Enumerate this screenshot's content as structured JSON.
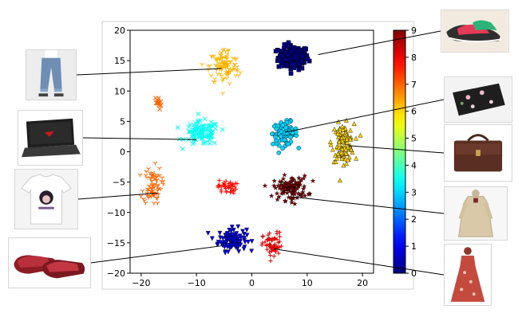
{
  "chart_data": {
    "type": "scatter",
    "title": "",
    "xlabel": "",
    "ylabel": "",
    "xlim": [
      -22,
      22
    ],
    "ylim": [
      -20,
      20
    ],
    "xticks": [
      -20,
      -10,
      0,
      10,
      20
    ],
    "yticks": [
      -20,
      -15,
      -10,
      -5,
      0,
      5,
      10,
      15,
      20
    ],
    "colorbar": {
      "min": 0,
      "max": 9,
      "ticks": [
        0,
        1,
        2,
        3,
        4,
        5,
        6,
        7,
        8,
        9
      ],
      "colormap": "jet"
    },
    "grid": false,
    "clusters": [
      {
        "label": 0,
        "marker": "square",
        "center": [
          7.5,
          15.5
        ],
        "spread": [
          2.5,
          1.8
        ],
        "count": 150,
        "image": "sneakers"
      },
      {
        "label": 1,
        "marker": "triangle-down",
        "center": [
          -3.5,
          -14.5
        ],
        "spread": [
          2.3,
          1.7
        ],
        "count": 110,
        "image": "slippers"
      },
      {
        "label": 3,
        "marker": "circle",
        "center": [
          6.0,
          3.0
        ],
        "spread": [
          2.0,
          1.7
        ],
        "count": 100,
        "image": "clutch-bag"
      },
      {
        "label": 3.5,
        "marker": "x",
        "center": [
          -9.0,
          3.0
        ],
        "spread": [
          2.8,
          1.8
        ],
        "count": 110,
        "image": "laptop"
      },
      {
        "label": 6,
        "marker": "triangle-up",
        "center": [
          16.5,
          1.5
        ],
        "spread": [
          1.8,
          2.8
        ],
        "count": 110,
        "image": "handbag"
      },
      {
        "label": 6.3,
        "marker": "tri-down",
        "center": [
          -5.0,
          14.0
        ],
        "spread": [
          2.5,
          2.8
        ],
        "count": 110,
        "image": "jeans"
      },
      {
        "label": 7,
        "marker": "tri-down",
        "center": [
          -18.0,
          -5.5
        ],
        "spread": [
          1.5,
          2.8
        ],
        "count": 80,
        "image": "t-shirt"
      },
      {
        "label": 7,
        "marker": "x",
        "center": [
          -17.0,
          8.0
        ],
        "spread": [
          0.6,
          1.0
        ],
        "count": 14,
        "image": ""
      },
      {
        "label": 7.8,
        "marker": "plus",
        "center": [
          -4.5,
          -5.8
        ],
        "spread": [
          1.5,
          1.0
        ],
        "count": 40,
        "image": ""
      },
      {
        "label": 8.2,
        "marker": "plus",
        "center": [
          3.8,
          -15.5
        ],
        "spread": [
          1.6,
          2.0
        ],
        "count": 60,
        "image": "dress"
      },
      {
        "label": 9,
        "marker": "star",
        "center": [
          7.0,
          -6.0
        ],
        "spread": [
          2.8,
          1.8
        ],
        "count": 110,
        "image": "coat"
      }
    ],
    "annotations": [
      {
        "image": "sneakers",
        "point": [
          12,
          16
        ]
      },
      {
        "image": "jeans",
        "point": [
          -5.5,
          13.7
        ]
      },
      {
        "image": "laptop",
        "point": [
          -10,
          2
        ]
      },
      {
        "image": "t-shirt",
        "point": [
          -17,
          -6.8
        ]
      },
      {
        "image": "slippers",
        "point": [
          -5.5,
          -15.5
        ]
      },
      {
        "image": "clutch-bag",
        "point": [
          6,
          3.2
        ]
      },
      {
        "image": "handbag",
        "point": [
          17.5,
          1
        ]
      },
      {
        "image": "coat",
        "point": [
          7,
          -7.4
        ]
      },
      {
        "image": "dress",
        "point": [
          4,
          -16
        ]
      }
    ]
  },
  "images": [
    {
      "name": "sneakers",
      "bg": "#f2eadf"
    },
    {
      "name": "jeans",
      "bg": "#ededed"
    },
    {
      "name": "laptop",
      "bg": "#ffffff"
    },
    {
      "name": "t-shirt",
      "bg": "#f4f4f4"
    },
    {
      "name": "slippers",
      "bg": "#ffffff"
    },
    {
      "name": "clutch-bag",
      "bg": "#f3f3f3"
    },
    {
      "name": "handbag",
      "bg": "#ffffff"
    },
    {
      "name": "coat",
      "bg": "#f7f7f7"
    },
    {
      "name": "dress",
      "bg": "#ffffff"
    }
  ]
}
